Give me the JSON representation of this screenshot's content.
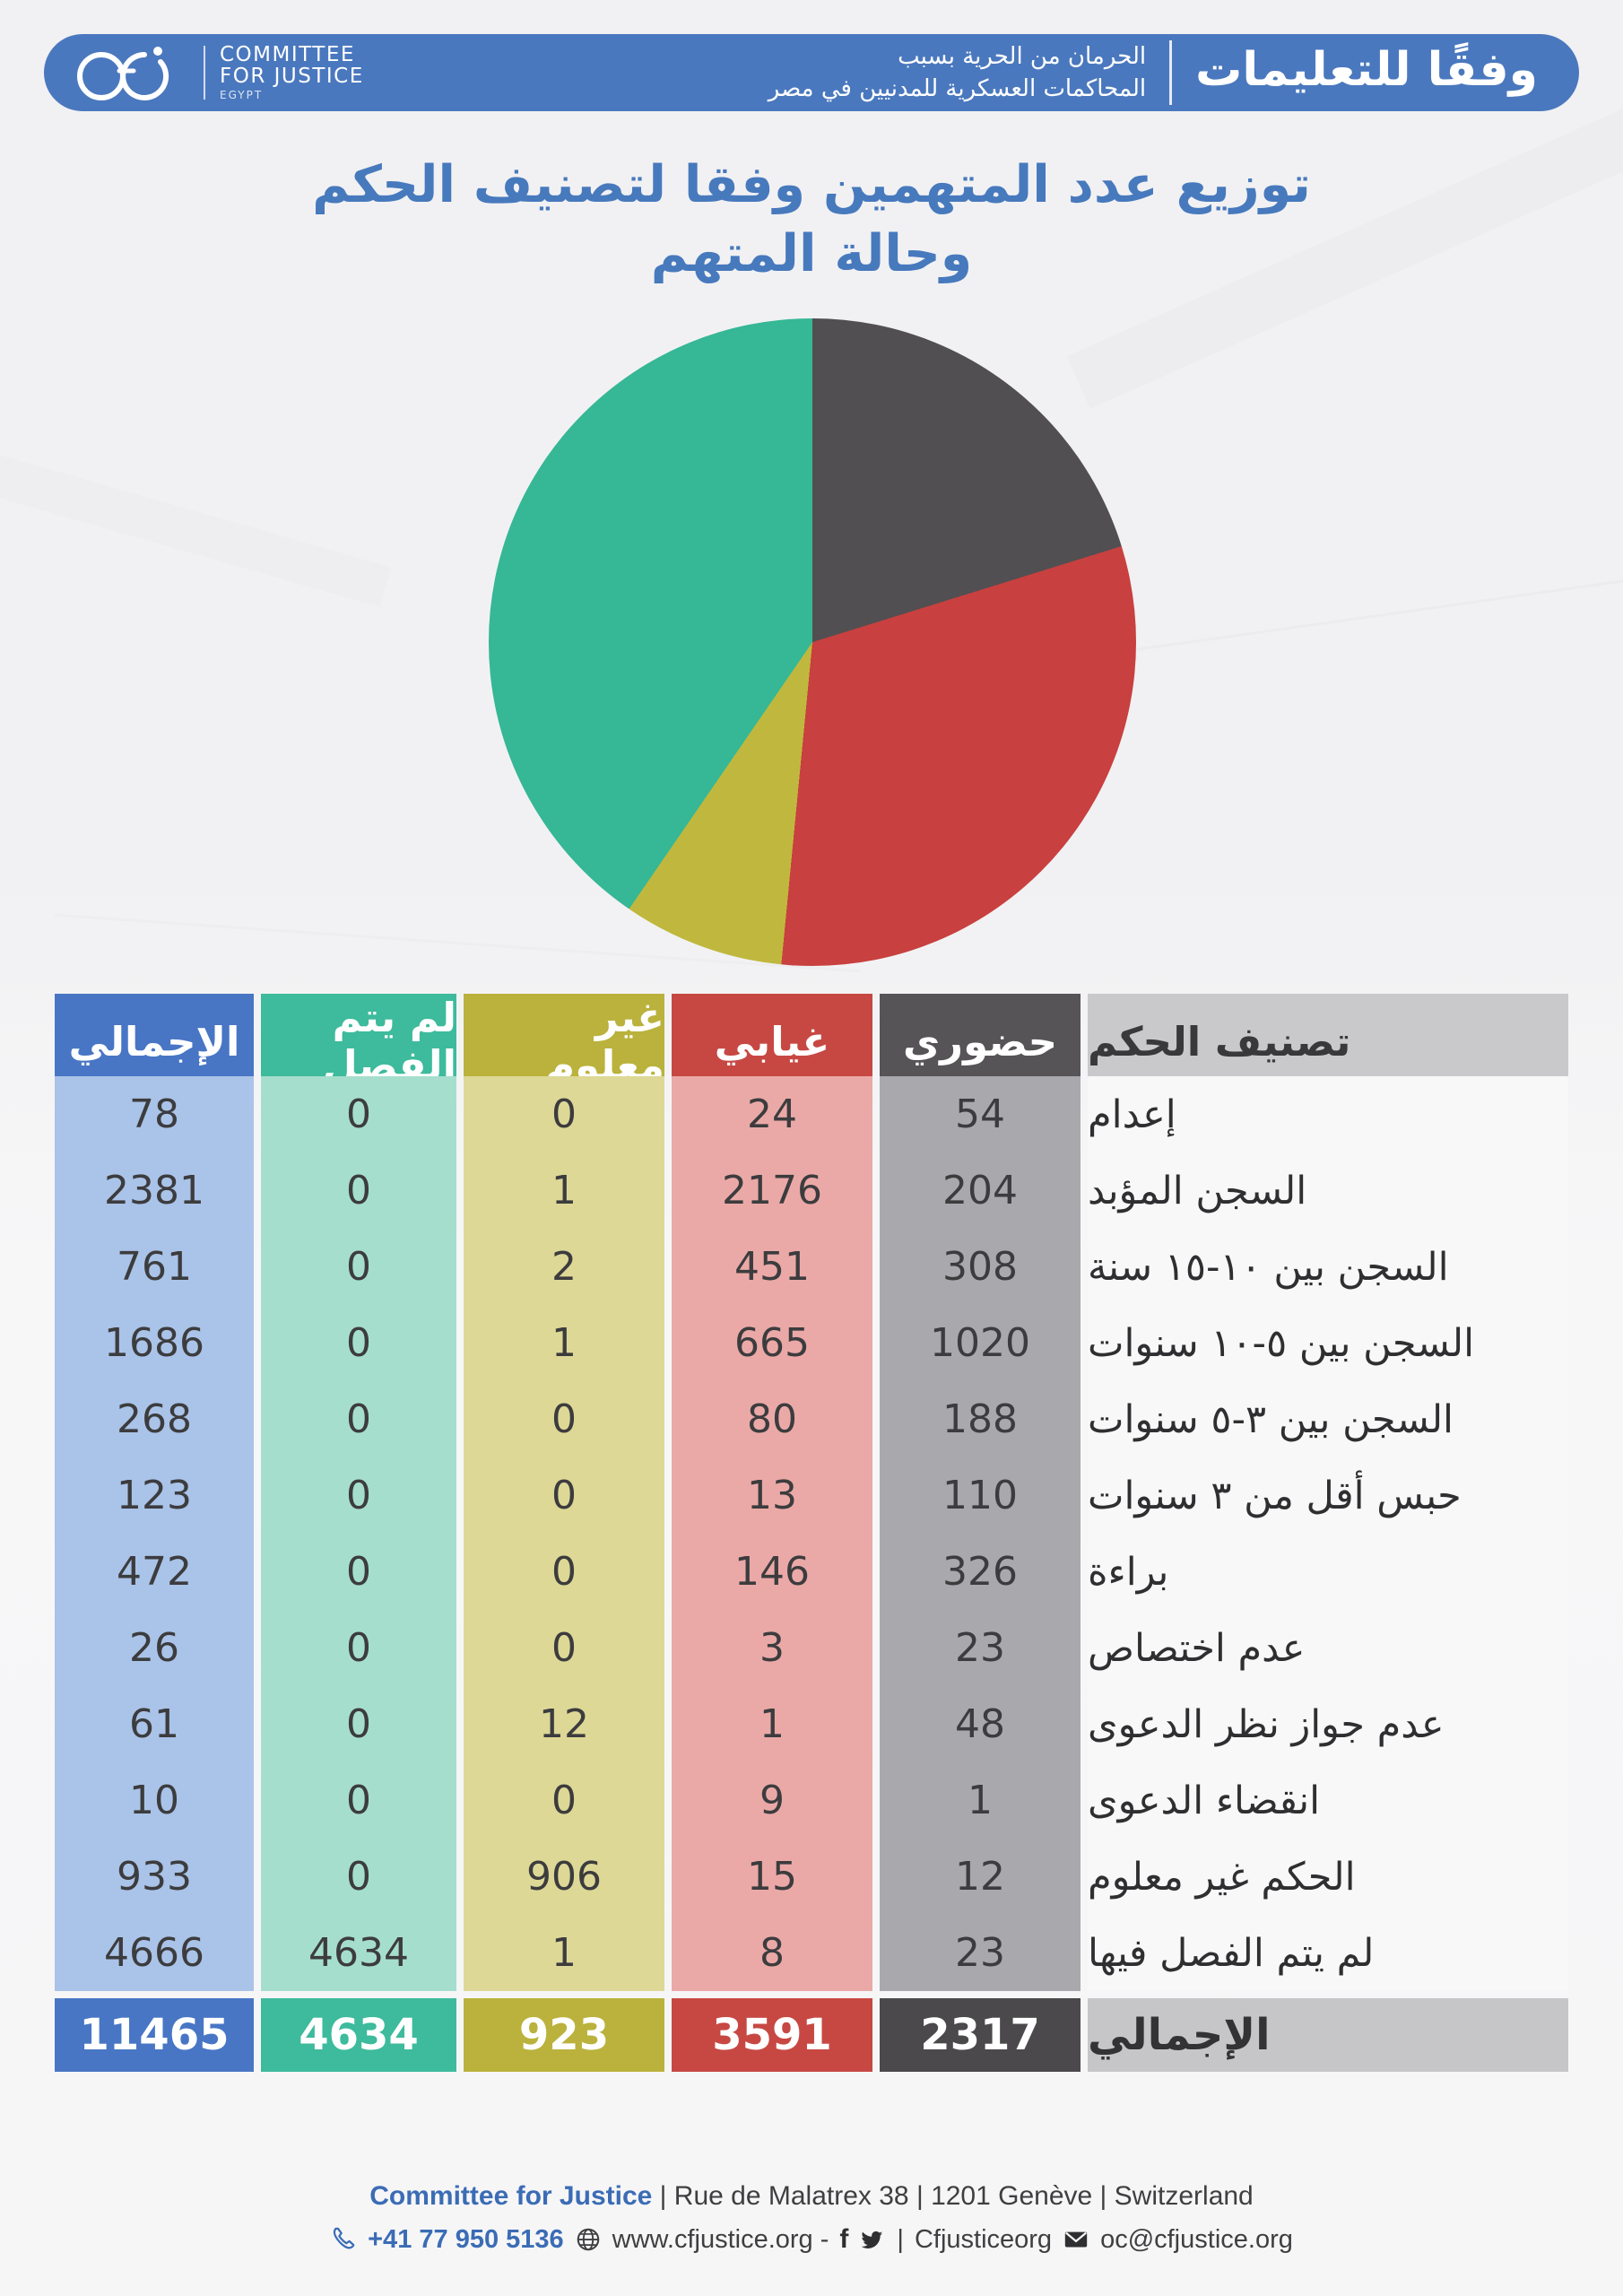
{
  "header": {
    "logo": {
      "line1": "COMMITTEE",
      "line2": "FOR JUSTICE",
      "line3": "EGYPT"
    },
    "subtitle_line1": "الحرمان من الحرية بسبب",
    "subtitle_line2": "المحاكمات العسكرية للمدنيين في مصر",
    "brand_title": "وفقًا للتعليمات"
  },
  "title": {
    "line1": "توزيع عدد المتهمين وفقا لتصنيف الحكم",
    "line2": "وحالة المتهم"
  },
  "chart_data": {
    "type": "pie",
    "title": "توزيع عدد المتهمين وفقا لتصنيف الحكم وحالة المتهم",
    "start_angle_deg": 0,
    "direction": "clockwise",
    "legend_position": "none",
    "total": 11465,
    "slices": [
      {
        "label": "حضوري",
        "value": 2317,
        "color": "#514f51"
      },
      {
        "label": "غيابي",
        "value": 3591,
        "color": "#c8403f"
      },
      {
        "label": "غير معلوم",
        "value": 923,
        "color": "#c0b83e"
      },
      {
        "label": "لم يتم الفصل",
        "value": 4634,
        "color": "#36b795"
      }
    ]
  },
  "table": {
    "columns": [
      {
        "key": "total",
        "label": "الإجمالي",
        "header_bg": "#4876c5",
        "body_bg": "#aac3e8",
        "total_bg": "#4876c5"
      },
      {
        "key": "undecided",
        "label": "لم يتم الفصل",
        "header_bg": "#3dbb9c",
        "body_bg": "#a6decd",
        "total_bg": "#3dbb9c"
      },
      {
        "key": "unknown",
        "label": "غير معلوم",
        "header_bg": "#bab23c",
        "body_bg": "#ddd896",
        "total_bg": "#bab23c"
      },
      {
        "key": "absentia",
        "label": "غيابي",
        "header_bg": "#c74843",
        "body_bg": "#eaa9a7",
        "total_bg": "#c74843"
      },
      {
        "key": "present",
        "label": "حضوري",
        "header_bg": "#565456",
        "body_bg": "#a9a8ac",
        "total_bg": "#4b494b"
      },
      {
        "key": "label",
        "label": "تصنيف الحكم",
        "header_bg": "#c9c9cb",
        "body_bg": "#f8f8f9",
        "total_bg": "#c6c6c8"
      }
    ],
    "rows": [
      {
        "label": "إعدام",
        "present": "54",
        "absentia": "24",
        "unknown": "0",
        "undecided": "0",
        "total": "78"
      },
      {
        "label": "السجن المؤبد",
        "present": "204",
        "absentia": "2176",
        "unknown": "1",
        "undecided": "0",
        "total": "2381"
      },
      {
        "label": "السجن بين ١٠-١٥ سنة",
        "present": "308",
        "absentia": "451",
        "unknown": "2",
        "undecided": "0",
        "total": "761"
      },
      {
        "label": "السجن بين ٥-١٠ سنوات",
        "present": "1020",
        "absentia": "665",
        "unknown": "1",
        "undecided": "0",
        "total": "1686"
      },
      {
        "label": "السجن بين ٣-٥ سنوات",
        "present": "188",
        "absentia": "80",
        "unknown": "0",
        "undecided": "0",
        "total": "268"
      },
      {
        "label": "حبس أقل من ٣ سنوات",
        "present": "110",
        "absentia": "13",
        "unknown": "0",
        "undecided": "0",
        "total": "123"
      },
      {
        "label": "براءة",
        "present": "326",
        "absentia": "146",
        "unknown": "0",
        "undecided": "0",
        "total": "472"
      },
      {
        "label": "عدم اختصاص",
        "present": "23",
        "absentia": "3",
        "unknown": "0",
        "undecided": "0",
        "total": "26"
      },
      {
        "label": "عدم جواز نظر الدعوى",
        "present": "48",
        "absentia": "1",
        "unknown": "12",
        "undecided": "0",
        "total": "61"
      },
      {
        "label": "انقضاء الدعوى",
        "present": "1",
        "absentia": "9",
        "unknown": "0",
        "undecided": "0",
        "total": "10"
      },
      {
        "label": "الحكم غير معلوم",
        "present": "12",
        "absentia": "15",
        "unknown": "906",
        "undecided": "0",
        "total": "933"
      },
      {
        "label": "لم يتم الفصل فيها",
        "present": "23",
        "absentia": "8",
        "unknown": "1",
        "undecided": "4634",
        "total": "4666"
      }
    ],
    "total_row": {
      "label": "الإجمالي",
      "present": "2317",
      "absentia": "3591",
      "unknown": "923",
      "undecided": "4634",
      "total": "11465"
    }
  },
  "footer": {
    "org": "Committee for Justice",
    "address": " | Rue de Malatrex 38 | 1201 Genève | Switzerland",
    "phone": "+41 77 950 5136",
    "website": "www.cfjustice.org -",
    "social_sep": "|",
    "social_handle": "Cfjusticeorg",
    "email": "oc@cfjustice.org"
  }
}
